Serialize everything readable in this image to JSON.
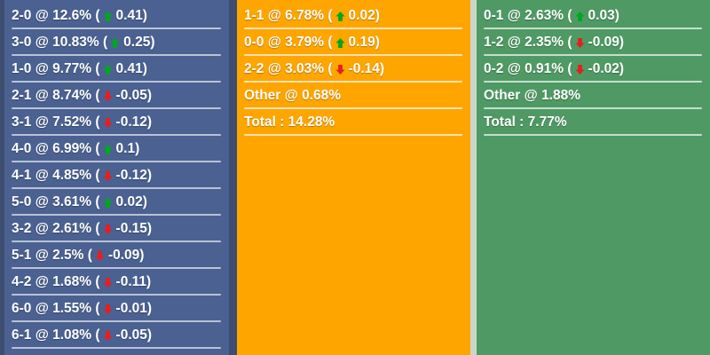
{
  "page": {
    "background": "#3C4D6F",
    "gap_color": "#CBD6CB",
    "text_color": "#FFFFFF",
    "up_color": "#00A81C",
    "down_color": "#E51F1F"
  },
  "panels": [
    {
      "id": "home-scores",
      "background": "#4B6191",
      "divider_color": "rgba(255,255,255,0.62)",
      "rows": [
        {
          "label": "2-0",
          "sep": " @ ",
          "value": "12.6%",
          "dir": "up",
          "change": "0.41"
        },
        {
          "label": "3-0",
          "sep": " @ ",
          "value": "10.83%",
          "dir": "up",
          "change": "0.25"
        },
        {
          "label": "1-0",
          "sep": " @ ",
          "value": "9.77%",
          "dir": "up",
          "change": "0.41"
        },
        {
          "label": "2-1",
          "sep": " @ ",
          "value": "8.74%",
          "dir": "down",
          "change": "-0.05"
        },
        {
          "label": "3-1",
          "sep": " @ ",
          "value": "7.52%",
          "dir": "down",
          "change": "-0.12"
        },
        {
          "label": "4-0",
          "sep": " @ ",
          "value": "6.99%",
          "dir": "up",
          "change": "0.1"
        },
        {
          "label": "4-1",
          "sep": " @ ",
          "value": "4.85%",
          "dir": "down",
          "change": "-0.12"
        },
        {
          "label": "5-0",
          "sep": " @ ",
          "value": "3.61%",
          "dir": "up",
          "change": "0.02"
        },
        {
          "label": "3-2",
          "sep": " @ ",
          "value": "2.61%",
          "dir": "down",
          "change": "-0.15"
        },
        {
          "label": "5-1",
          "sep": " @ ",
          "value": "2.5%",
          "dir": "down",
          "change": "-0.09"
        },
        {
          "label": "4-2",
          "sep": " @ ",
          "value": "1.68%",
          "dir": "down",
          "change": "-0.11"
        },
        {
          "label": "6-0",
          "sep": " @ ",
          "value": "1.55%",
          "dir": "down",
          "change": "-0.01"
        },
        {
          "label": "6-1",
          "sep": " @ ",
          "value": "1.08%",
          "dir": "down",
          "change": "-0.05"
        }
      ]
    },
    {
      "id": "draw-scores",
      "background": "#FFA500",
      "divider_color": "rgba(255,255,255,0.70)",
      "rows": [
        {
          "label": "1-1",
          "sep": " @ ",
          "value": "6.78%",
          "dir": "up",
          "change": "0.02"
        },
        {
          "label": "0-0",
          "sep": " @ ",
          "value": "3.79%",
          "dir": "up",
          "change": "0.19"
        },
        {
          "label": "2-2",
          "sep": " @ ",
          "value": "3.03%",
          "dir": "down",
          "change": "-0.14"
        },
        {
          "label": "Other",
          "sep": " @ ",
          "value": "0.68%"
        },
        {
          "label": "Total",
          "sep": " : ",
          "value": "14.28%"
        }
      ]
    },
    {
      "id": "away-scores",
      "background": "#4F9A64",
      "divider_color": "rgba(255,255,255,0.68)",
      "rows": [
        {
          "label": "0-1",
          "sep": " @ ",
          "value": "2.63%",
          "dir": "up",
          "change": "0.03"
        },
        {
          "label": "1-2",
          "sep": " @ ",
          "value": "2.35%",
          "dir": "down",
          "change": "-0.09"
        },
        {
          "label": "0-2",
          "sep": " @ ",
          "value": "0.91%",
          "dir": "down",
          "change": "-0.02"
        },
        {
          "label": "Other",
          "sep": " @ ",
          "value": "1.88%"
        },
        {
          "label": "Total",
          "sep": " : ",
          "value": "7.77%"
        }
      ]
    }
  ]
}
